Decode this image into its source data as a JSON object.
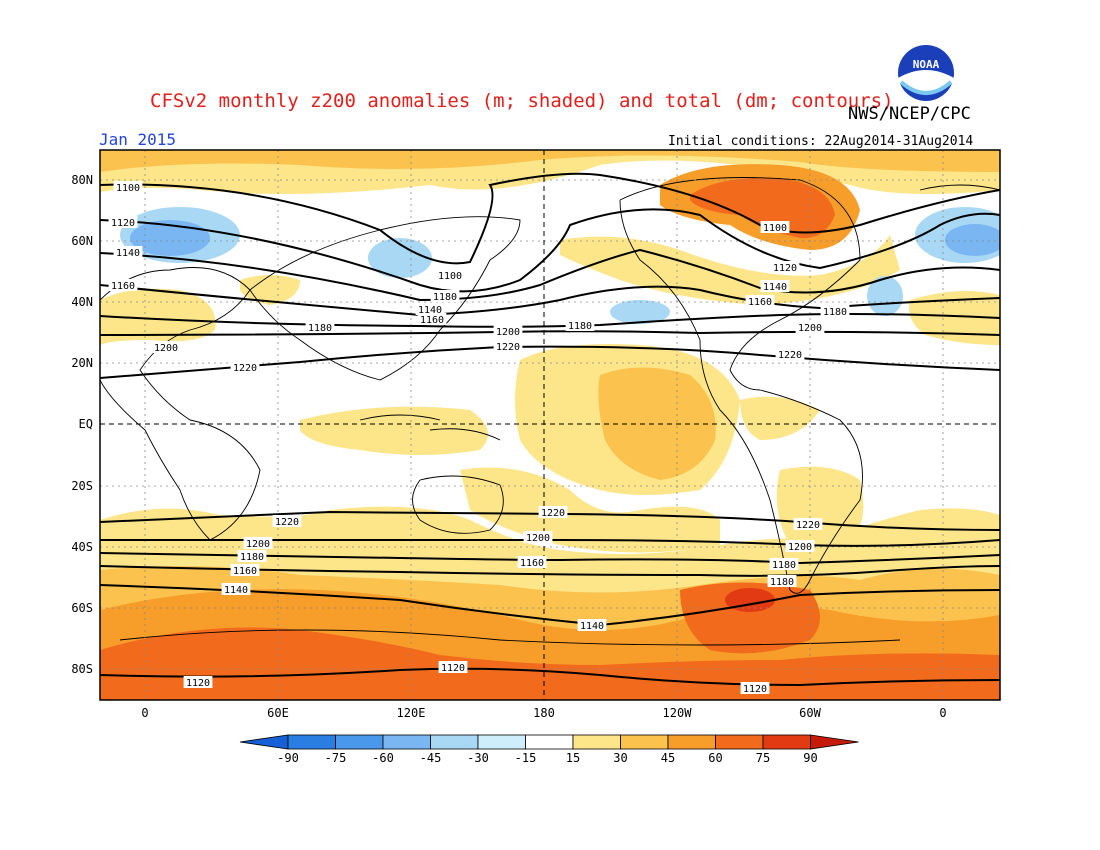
{
  "header": {
    "title": "CFSv2 monthly z200 anomalies (m; shaded) and total (dm; contours)",
    "organization": "NWS/NCEP/CPC",
    "month": "Jan 2015",
    "initial_conditions": "Initial conditions: 22Aug2014-31Aug2014",
    "logo_text": "NOAA"
  },
  "map": {
    "lat_labels": [
      "80N",
      "60N",
      "40N",
      "20N",
      "EQ",
      "20S",
      "40S",
      "60S",
      "80S"
    ],
    "lon_labels": [
      "0",
      "60E",
      "120E",
      "180",
      "120W",
      "60W",
      "0"
    ],
    "contour_labels": [
      "1100",
      "1120",
      "1140",
      "1160",
      "1180",
      "1200",
      "1220"
    ]
  },
  "colorbar": {
    "labels": [
      "-90",
      "-75",
      "-60",
      "-45",
      "-30",
      "-15",
      "15",
      "30",
      "45",
      "60",
      "75",
      "90"
    ],
    "colors": [
      "#1560d6",
      "#2a7ee2",
      "#4a98ec",
      "#7ab6f2",
      "#a9d8f4",
      "#cdeefa",
      "#ffffff",
      "#fde58a",
      "#fbc24e",
      "#f79d2a",
      "#f26a1c",
      "#e23a12",
      "#c61a0a"
    ]
  },
  "chart_data": {
    "type": "heatmap",
    "title": "CFSv2 monthly z200 anomalies (m; shaded) and total (dm; contours)",
    "xlabel": "",
    "ylabel": "",
    "x_ticks": [
      "0",
      "60E",
      "120E",
      "180",
      "120W",
      "60W",
      "0"
    ],
    "y_ticks": [
      "80N",
      "60N",
      "40N",
      "20N",
      "EQ",
      "20S",
      "40S",
      "60S",
      "80S"
    ],
    "shading_levels_m": [
      -90,
      -75,
      -60,
      -45,
      -30,
      -15,
      15,
      30,
      45,
      60,
      75,
      90
    ],
    "contour_levels_dm": [
      1100,
      1120,
      1140,
      1160,
      1180,
      1200,
      1220
    ]
  }
}
